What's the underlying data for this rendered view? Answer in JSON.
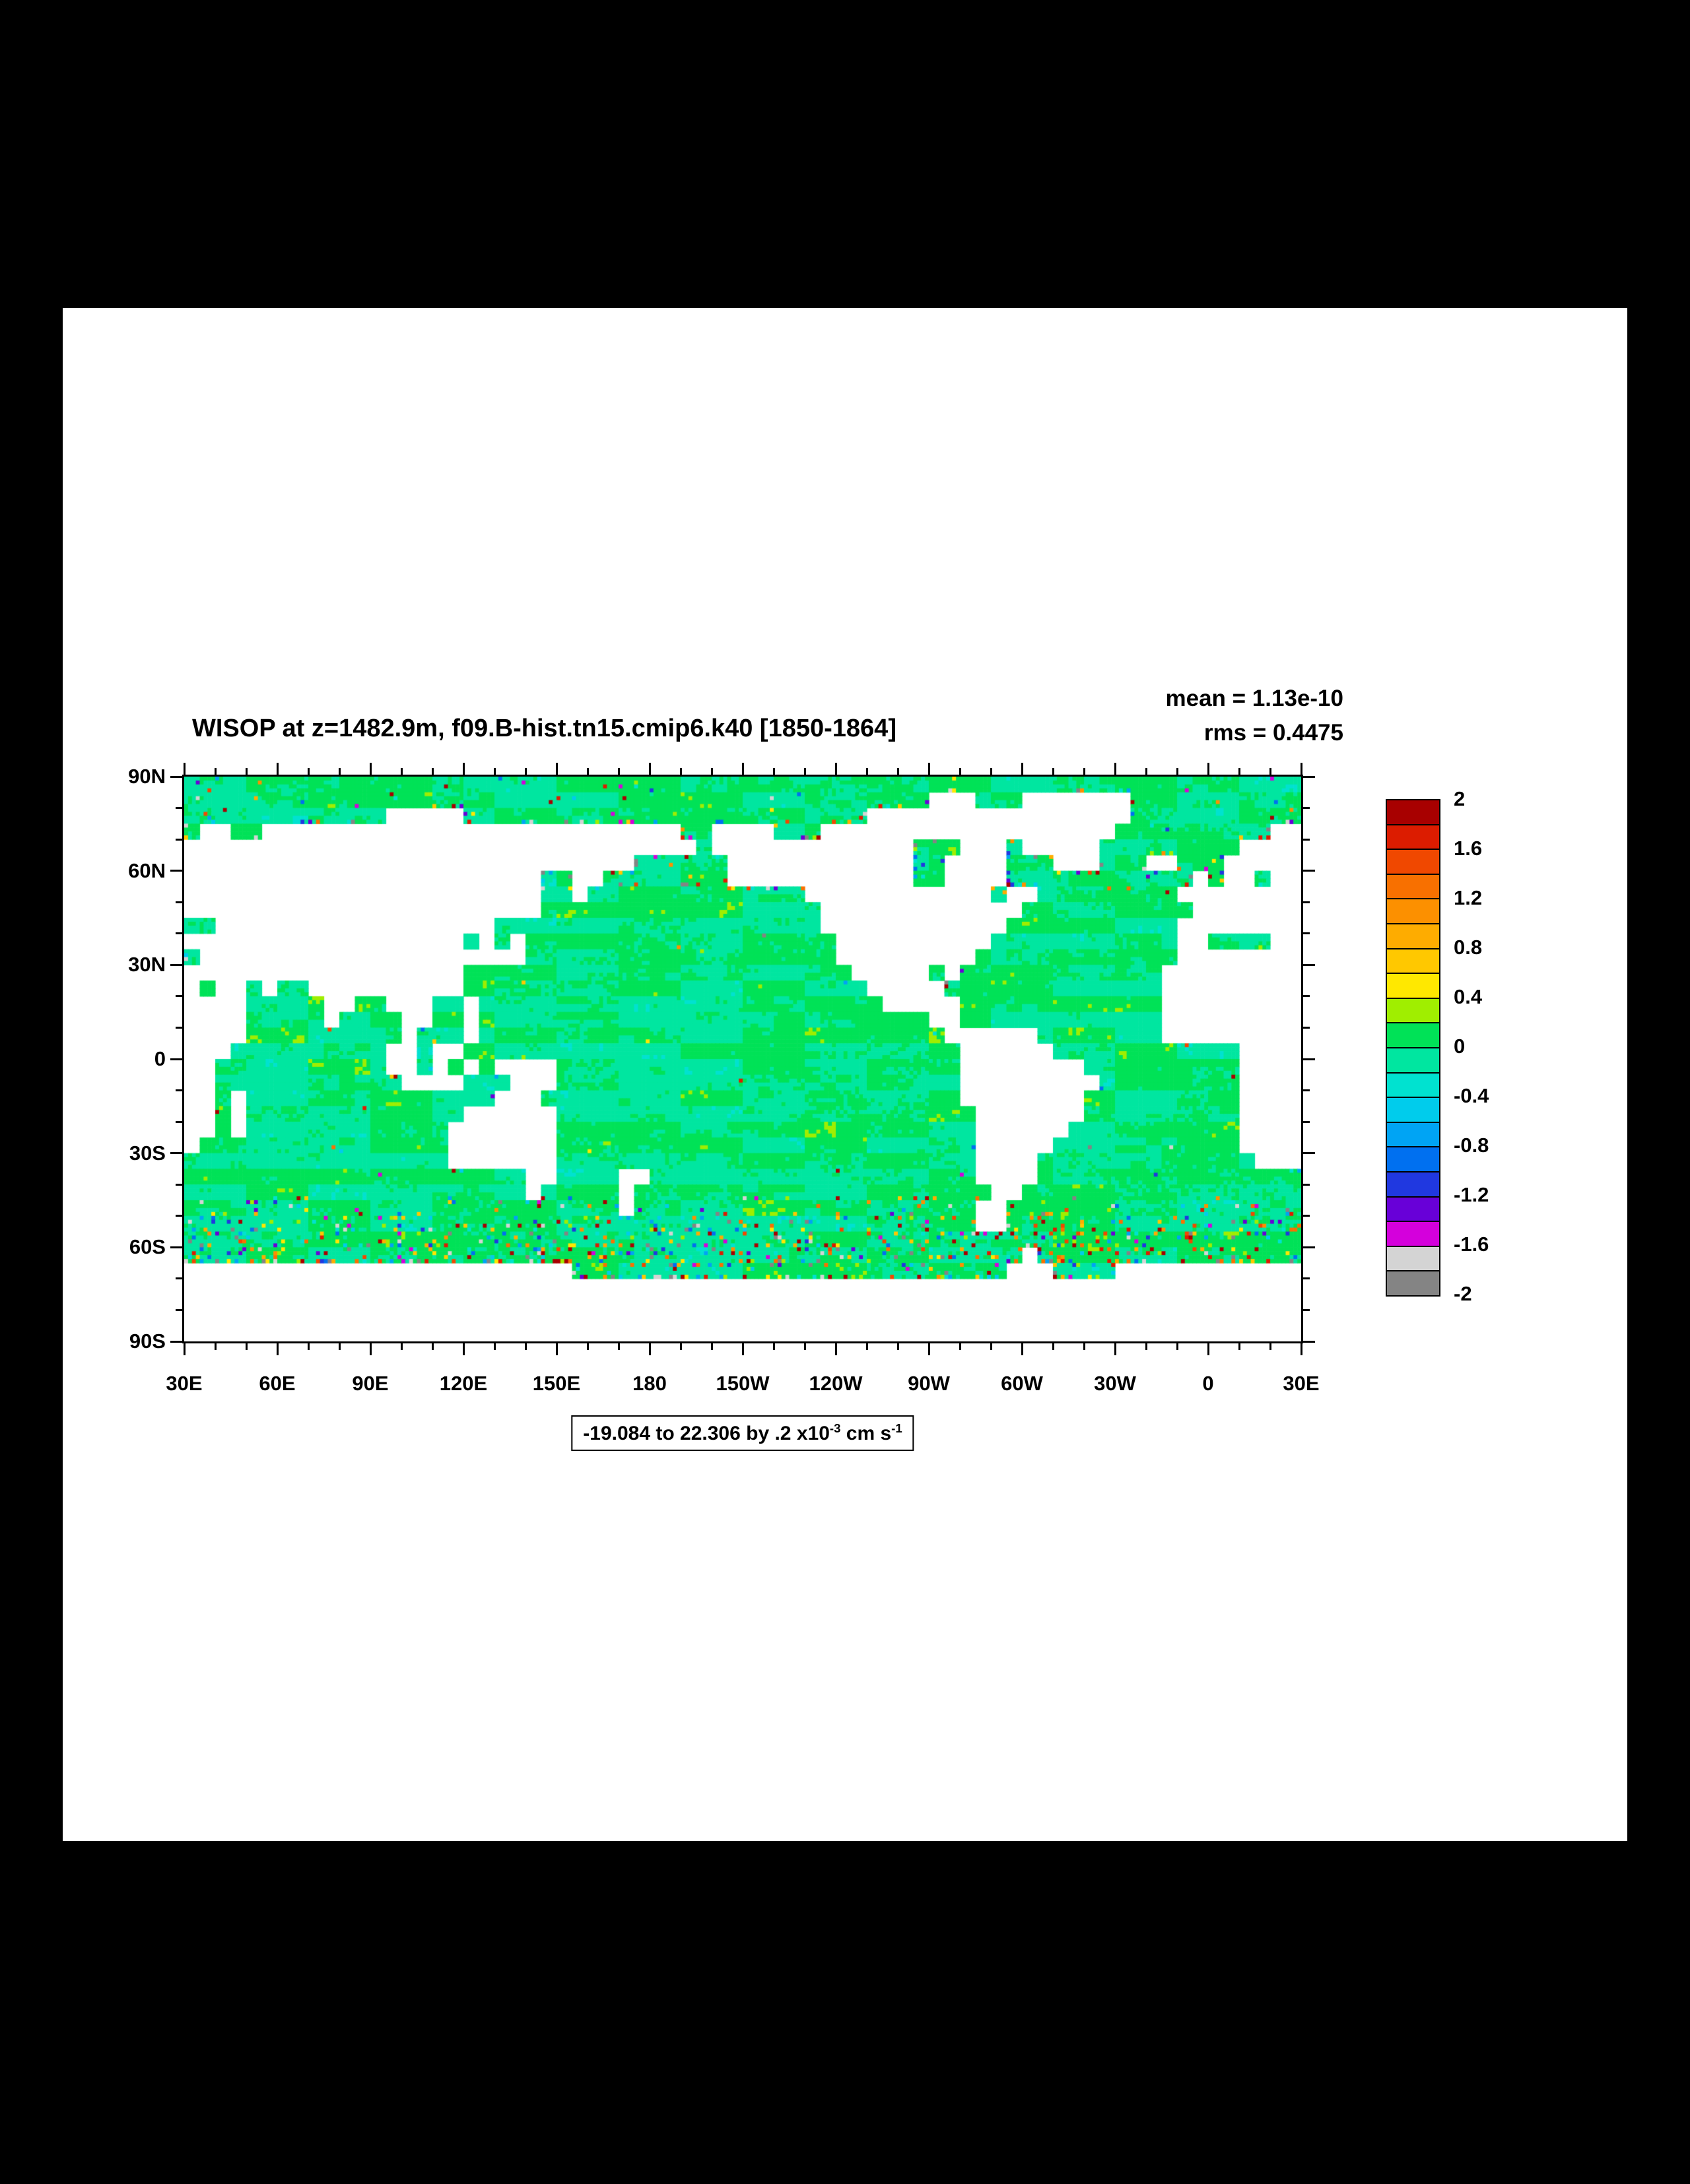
{
  "colors": {
    "background": "#000000",
    "panel": "#ffffff",
    "land": "#ffffff",
    "axis": "#000000"
  },
  "chart_data": {
    "type": "heatmap",
    "title": "WISOP at z=1482.9m, f09.B-hist.tn15.cmip6.k40 [1850-1864]",
    "variable": "WISOP",
    "depth": "z=1482.9m",
    "case": "f09.B-hist.tn15.cmip6.k40",
    "years": "[1850-1864]",
    "stats": {
      "mean": "mean = 1.13e-10",
      "rms": "rms = 0.4475"
    },
    "annotation": {
      "prefix": "-19.084 to 22.306 by .2 x10",
      "sup1": "-3",
      "mid": " cm s",
      "sup2": "-1"
    },
    "range": {
      "min": "-19.084",
      "max": "22.306",
      "interval": ".2"
    },
    "x_ticks": [
      "30E",
      "60E",
      "90E",
      "120E",
      "150E",
      "180",
      "150W",
      "120W",
      "90W",
      "60W",
      "30W",
      "0",
      "30E"
    ],
    "y_ticks": [
      "90N",
      "60N",
      "30N",
      "0",
      "30S",
      "60S",
      "90S"
    ],
    "colorbar": {
      "labels": [
        "2",
        "1.6",
        "1.2",
        "0.8",
        "0.4",
        "0",
        "-0.4",
        "-0.8",
        "-1.2",
        "-1.6",
        "-2"
      ],
      "levels": {
        "min": -2,
        "max": 2,
        "step": 0.2
      },
      "colors": [
        "#a80000",
        "#dc1c00",
        "#f04800",
        "#f87000",
        "#fc9000",
        "#feac00",
        "#ffc800",
        "#ffe800",
        "#a0ee00",
        "#00e257",
        "#00e6a0",
        "#00e2d0",
        "#00ccec",
        "#00a4f4",
        "#0070f0",
        "#2038e0",
        "#6800d8",
        "#d400dc",
        "#d4d4d4",
        "#848484"
      ]
    },
    "map": {
      "lon_start_deg_east": 30,
      "mask_cell_deg": 5,
      "land_mask_rle": [
        "72o",
        "48o 3L 3o 7L 11o",
        "13o 5L 26o 17L 11o",
        "1o 2L 2o 27L 2o 4L 3o 19L 10o 2L",
        "33L 1o 13L 3o 3L 1o 5L 9o 4L",
        "29L 6o 12L 2o 4L 3o 3L 3o 2L 3o 5L",
        "23L 2o 2L 8o 12L 2o 4L 12o 1L 1o 2L 1o 2L",
        "23L 2o 1L 14o 12L 1o 2L 9o 8L",
        "23L 18o 13L 11o 7L",
        "2o 18L 21o 12L 11o 8L",
        "18L 1o 1L 1o 1L 20o 10L 12o 2L 4o 2L",
        "1o 21L 20o 9L 13o 8L",
        "18L 25o 5L 1o 1L 13o 9L",
        "1L 1o 2L 1o 1L 2o 10L 26o 5L 14o 9L",
        "4L 5o 2L 2o 3L 2o 1L 26o 5L 13o 9L",
        "4L 5o 1L 4o 2L 2o 1L 29o 2L 13o 9L",
        "4L 10o 1L 3o 1L 30o 6L 8o 9L",
        "3L 10o 2L 1o 2L 32o 6L 12o 4L",
        "2L 11o 2L 1o 1L 1o 1L 1o 4L 26o 8L 10o 4L",
        "2L 12o 4L 3o 3L 26o 9L 9o 4L",
        "2L 1o 1L 16o 3L 27o 8L 10o 4L",
        "2L 1o 1L 14o 6L 27o 7L 10o 4L",
        "2L 1o 1L 13o 7L 27o 6L 11o 4L",
        "1L 16o 7L 27o 5L 12o 4L",
        "17o 7L 27o 4L 14o 3L",
        "22o 2L 4o 2L 21o 4L 17o",
        "22o 1L 5o 1L 23o 2L 18o",
        "28o 1L 22o 2L 19o",
        "51o 2L 19o",
        "72o",
        "54o 1L 17o",
        "25L 28o 3L 4o 12L",
        "72L",
        "72L",
        "72L",
        "72L"
      ]
    }
  }
}
